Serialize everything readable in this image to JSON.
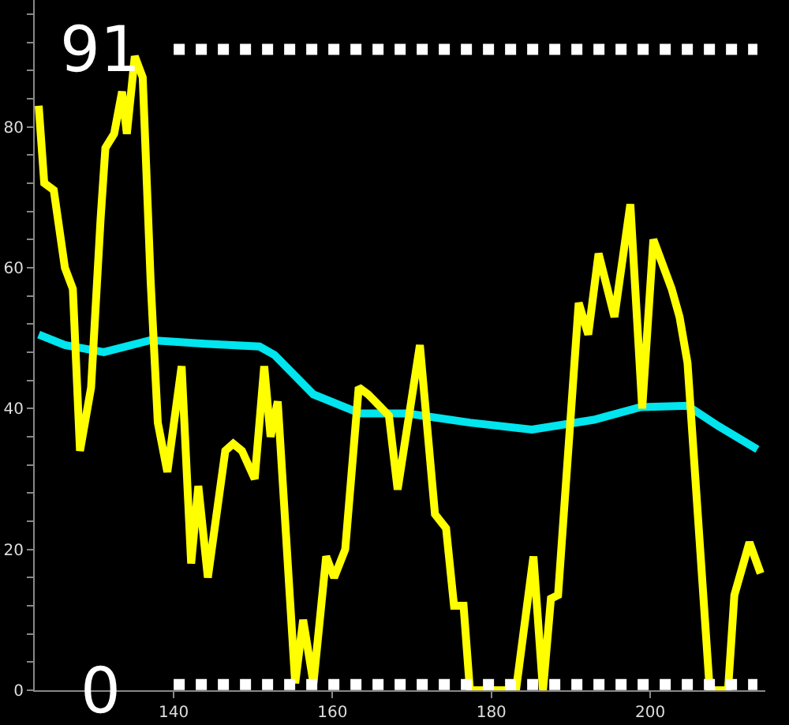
{
  "chart_data": {
    "type": "line",
    "xlim": [
      122.5,
      214.5
    ],
    "ylim": [
      0,
      98
    ],
    "xticks": [
      140,
      160,
      180,
      200
    ],
    "yticks": [
      0,
      {
        "value": 4,
        "label": null
      },
      {
        "value": 8,
        "label": null
      },
      {
        "value": 12,
        "label": null
      },
      {
        "value": 16,
        "label": null
      },
      20,
      {
        "value": 24,
        "label": null
      },
      {
        "value": 28,
        "label": null
      },
      {
        "value": 32,
        "label": null
      },
      {
        "value": 36,
        "label": null
      },
      40,
      {
        "value": 44,
        "label": null
      },
      {
        "value": 48,
        "label": null
      },
      {
        "value": 52,
        "label": null
      },
      {
        "value": 56,
        "label": null
      },
      60,
      {
        "value": 64,
        "label": null
      },
      {
        "value": 68,
        "label": null
      },
      {
        "value": 72,
        "label": null
      },
      {
        "value": 76,
        "label": null
      },
      80,
      {
        "value": 84,
        "label": null
      },
      {
        "value": 88,
        "label": null
      },
      {
        "value": 92,
        "label": null
      },
      {
        "value": 96,
        "label": null
      }
    ],
    "grid": false,
    "marker": "none",
    "line_style": "solid",
    "series": [
      {
        "color": "#00e5ee",
        "x": [
          123,
          126.3,
          131.2,
          137.1,
          143.9,
          150.8,
          152.7,
          157.6,
          163.5,
          169.4,
          177.3,
          185.1,
          192.9,
          198.8,
          204.7,
          208.6,
          213.5
        ],
        "values": [
          50.5,
          49,
          48,
          49.7,
          49.2,
          48.8,
          47.6,
          42,
          39.3,
          39.3,
          38,
          37,
          38.4,
          40.2,
          40.4,
          37.5,
          34.2
        ]
      },
      {
        "color": "#ffff00",
        "x": [
          123,
          123.7,
          124.9,
          126.3,
          127.3,
          128.2,
          129.6,
          130.8,
          131.4,
          132.5,
          133.5,
          134.1,
          135.1,
          136.1,
          137.1,
          138,
          139.2,
          141,
          142.2,
          143.1,
          144.3,
          146.5,
          147.5,
          148.6,
          150.2,
          151.4,
          152.2,
          153.1,
          155.3,
          156.3,
          157.6,
          159.2,
          160.2,
          161.6,
          163.3,
          164.5,
          167.1,
          168.2,
          171,
          172.9,
          174.3,
          175.3,
          176.5,
          177.3,
          183.1,
          185.3,
          186.5,
          187.5,
          188.4,
          191,
          192.2,
          193.5,
          195.5,
          197.5,
          199,
          200.4,
          202.7,
          203.7,
          204.7,
          207.5,
          209.8,
          210.6,
          212.5,
          213.9
        ],
        "values": [
          83,
          72,
          71,
          60,
          57,
          34,
          43,
          67,
          77,
          79,
          85,
          79,
          90,
          87,
          58,
          38,
          31,
          46,
          18,
          29,
          16,
          34,
          35,
          34,
          30,
          46,
          36,
          41,
          1,
          10,
          1,
          19,
          16,
          20,
          43,
          42,
          39,
          28.5,
          49,
          25,
          23,
          12,
          12,
          0,
          0,
          19,
          0,
          13,
          13.5,
          55,
          50.5,
          62,
          53,
          69,
          40,
          64,
          57,
          53,
          46.5,
          0,
          0,
          13.5,
          21,
          16.6
        ]
      },
      {
        "color": "#ffffff",
        "line_style": "dotted",
        "x": [
          140,
          213.5
        ],
        "values": [
          91,
          91
        ]
      },
      {
        "color": "#ffffff",
        "line_style": "dotted",
        "x": [
          140,
          213.5
        ],
        "values": [
          0.8,
          0.8
        ]
      }
    ],
    "annotations": [
      "91",
      "0"
    ]
  }
}
